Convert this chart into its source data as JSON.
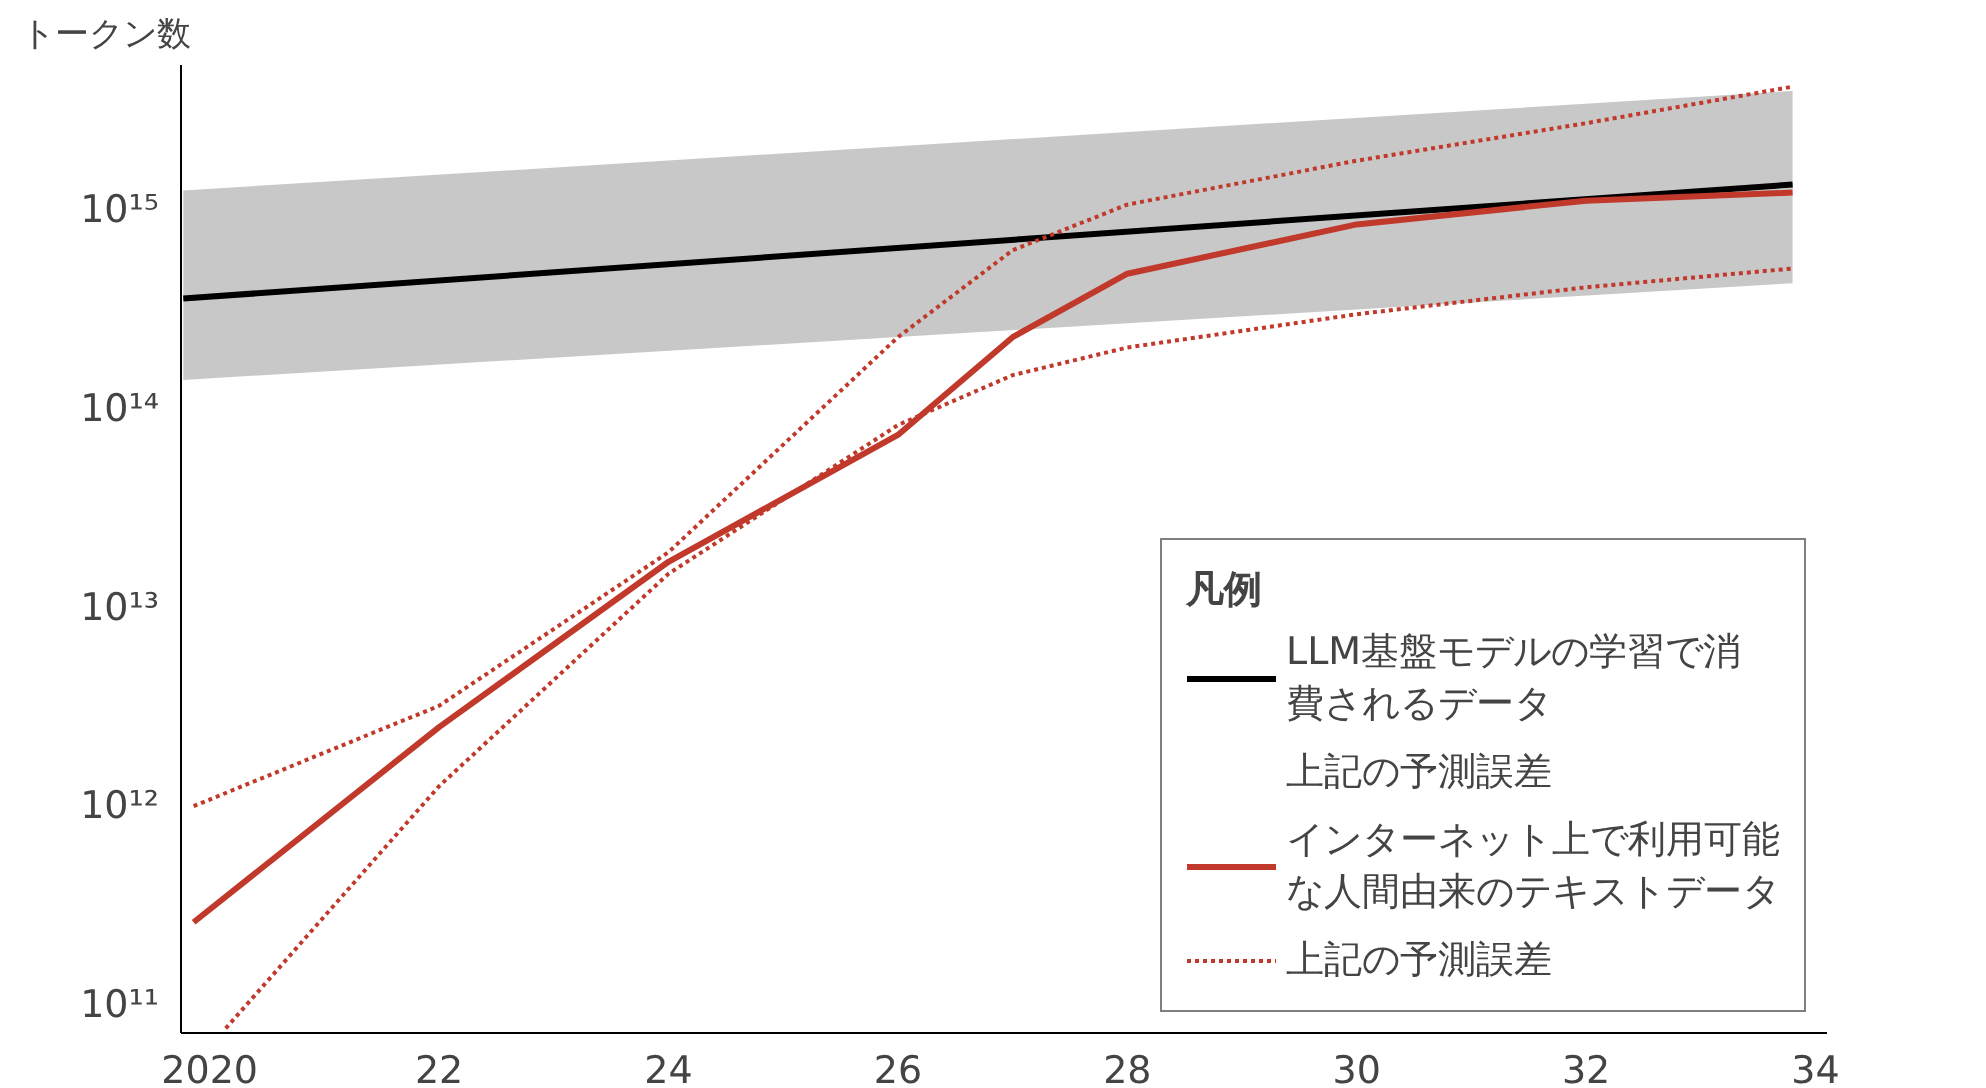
{
  "chart_data": {
    "type": "line",
    "ylabel": "トークン数",
    "legend_title": "凡例",
    "annotations": [
      "上記の予測誤差"
    ],
    "log": "y",
    "grid": false,
    "legend": "bottom right",
    "line_style": "solid",
    "marker": "none",
    "xlim": [
      2019.75,
      2034.1
    ],
    "xticks": [
      {
        "value": 2020,
        "label": "2020"
      },
      {
        "value": 2022,
        "label": "22"
      },
      {
        "value": 2024,
        "label": "24"
      },
      {
        "value": 2026,
        "label": "26"
      },
      {
        "value": 2028,
        "label": "28"
      },
      {
        "value": 2030,
        "label": "30"
      },
      {
        "value": 2032,
        "label": "32"
      },
      {
        "value": 2034,
        "label": "34"
      }
    ],
    "ylim": [
      72000000000.0,
      5400000000000000.0
    ],
    "yticks": [
      {
        "value": 100000000000.0,
        "label": "10¹¹"
      },
      {
        "value": 1000000000000.0,
        "label": "10¹²"
      },
      {
        "value": 10000000000000.0,
        "label": "10¹³"
      },
      {
        "value": 100000000000000.0,
        "label": "10¹⁴"
      },
      {
        "value": 1000000000000000.0,
        "label": "10¹⁵"
      }
    ],
    "series": [
      {
        "name": "LLM基盤モデルの学習で消費されるデータ",
        "color": "#000000",
        "x": [
          2019.77,
          2033.8
        ],
        "values": [
          360000000000000.0,
          1350000000000000.0
        ],
        "lower": [
          140000000000000.0,
          430000000000000.0
        ],
        "upper": [
          1260000000000000.0,
          4000000000000000.0
        ]
      },
      {
        "name": "インターネット上で利用可能な人間由来のテキストデータ",
        "color": "#c0392b",
        "x": [
          2019.86,
          2022,
          2024,
          2026,
          2027,
          2028,
          2030,
          2032,
          2033.8
        ],
        "values": [
          260000000000.0,
          2500000000000.0,
          17000000000000.0,
          74000000000000.0,
          230000000000000.0,
          480000000000000.0,
          850000000000000.0,
          1120000000000000.0,
          1230000000000000.0
        ]
      },
      {
        "name": "上記の予測誤差",
        "color": "#c0392b",
        "line_style": "dotted",
        "x": [
          2019.86,
          2022,
          2024,
          2026,
          2027,
          2028,
          2030,
          2032,
          2033.8
        ],
        "values": [
          1000000000000.0,
          3200000000000.0,
          19000000000000.0,
          230000000000000.0,
          630000000000000.0,
          1070000000000000.0,
          1780000000000000.0,
          2750000000000000.0,
          4200000000000000.0
        ]
      },
      {
        "color": "#c0392b",
        "line_style": "dotted",
        "x": [
          2020.14,
          2022,
          2024,
          2026,
          2027,
          2028,
          2030,
          2032,
          2033.8
        ],
        "values": [
          76000000000.0,
          1260000000000.0,
          14800000000000.0,
          83000000000000.0,
          148000000000000.0,
          204000000000000.0,
          300000000000000.0,
          410000000000000.0,
          510000000000000.0
        ]
      }
    ]
  }
}
